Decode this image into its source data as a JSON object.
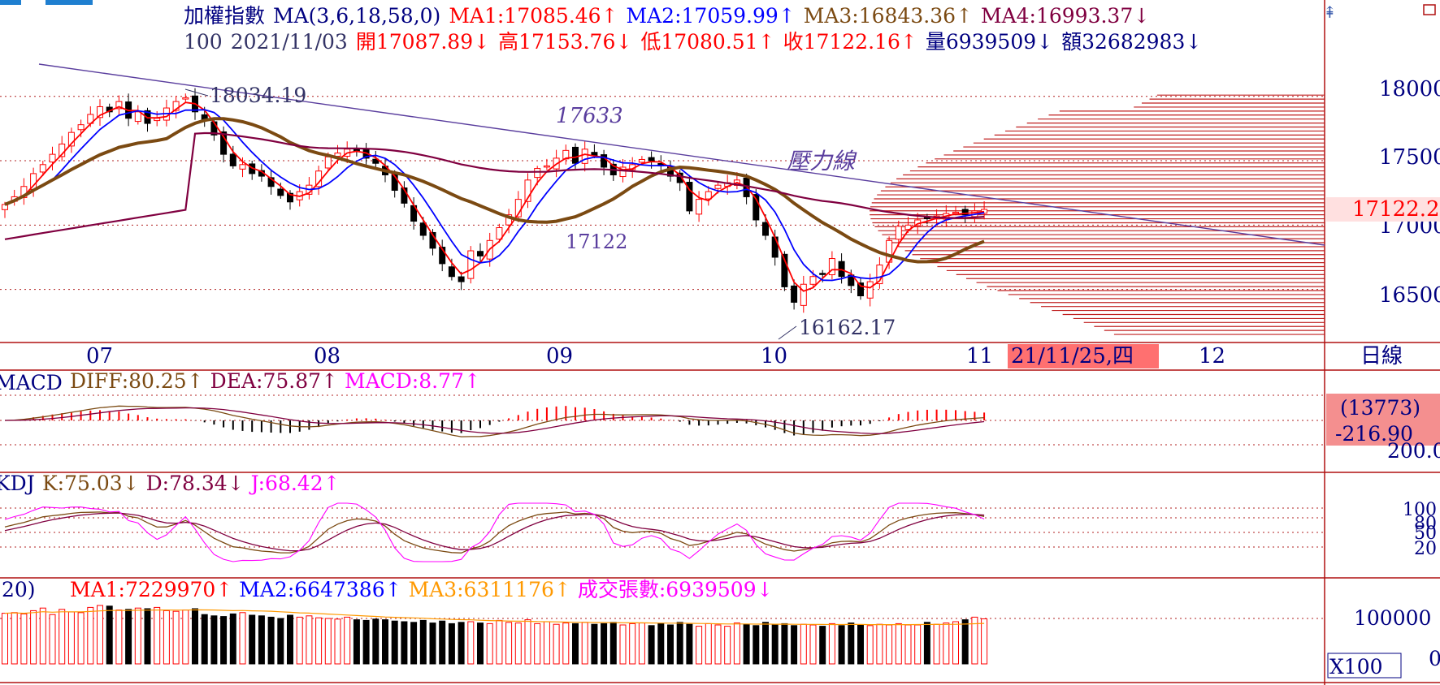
{
  "colors": {
    "up": "#ff0000",
    "down": "#000000",
    "ma1": "#ff0000",
    "ma2": "#0000ff",
    "ma3": "#7b4a12",
    "ma4": "#800040",
    "trend": "#5a3e9e",
    "grid": "#b02020",
    "frame": "#b01010",
    "date_box": "#ff7070",
    "info_box": "#f48f8f",
    "dark": "#333366",
    "magenta": "#ff00ff",
    "orange": "#ff9900"
  },
  "header": {
    "line1": [
      {
        "text": "加權指數",
        "color": "#000080"
      },
      {
        "text": "MA(3,6,18,58,0)",
        "color": "#000080"
      },
      {
        "text": "MA1:17085.46↑",
        "color": "#ff0000"
      },
      {
        "text": "MA2:17059.99↑",
        "color": "#0000ff"
      },
      {
        "text": "MA3:16843.36↑",
        "color": "#7b4a12"
      },
      {
        "text": "MA4:16993.37↓",
        "color": "#800040"
      }
    ],
    "line2": [
      {
        "text": "100",
        "color": "#333366"
      },
      {
        "text": "2021/11/03",
        "color": "#333366"
      },
      {
        "text": "開17087.89↓",
        "color": "#ff0000"
      },
      {
        "text": "高17153.76↓",
        "color": "#ff0000"
      },
      {
        "text": "低17080.51↑",
        "color": "#ff0000"
      },
      {
        "text": "收17122.16↑",
        "color": "#ff0000"
      },
      {
        "text": "量6939509↓",
        "color": "#000080"
      },
      {
        "text": "額32682983↓",
        "color": "#000080"
      }
    ]
  },
  "annotations": {
    "high_label": "18034.19",
    "low_label": "16162.17",
    "trendline_value": "17633",
    "mid_value": "17122",
    "resistance_label": "壓力線"
  },
  "price_axis": {
    "ticks": [
      "18000",
      "17500",
      "17000",
      "16500"
    ],
    "current_label": "17122.2"
  },
  "x_axis": {
    "months": [
      "07",
      "08",
      "09",
      "10",
      "11",
      "12"
    ],
    "date_box": "21/11/25,四",
    "period": "日線"
  },
  "macd_panel": {
    "name": "MACD",
    "values": [
      {
        "text": "DIFF:80.25↑",
        "color": "#7b4a12"
      },
      {
        "text": "DEA:75.87↑",
        "color": "#800040"
      },
      {
        "text": "MACD:8.77↑",
        "color": "#ff00ff"
      }
    ],
    "box_line1": "(13773)",
    "box_line2": "-216.90",
    "axis_peek": "200.0"
  },
  "kdj_panel": {
    "name": "KDJ",
    "values": [
      {
        "text": "K:75.03↓",
        "color": "#7b4a12"
      },
      {
        "text": "D:78.34↓",
        "color": "#800040"
      },
      {
        "text": "J:68.42↑",
        "color": "#ff00ff"
      }
    ],
    "axis_ticks": [
      "100",
      "80",
      "50",
      "20"
    ]
  },
  "volume_panel": {
    "prefix": ",20)",
    "values": [
      {
        "text": "MA1:7229970↑",
        "color": "#ff0000"
      },
      {
        "text": "MA2:6647386↑",
        "color": "#0000ff"
      },
      {
        "text": "MA3:6311176↑",
        "color": "#ff9900"
      },
      {
        "text": "成交張數:6939509↓",
        "color": "#ff00ff"
      }
    ],
    "axis_tick": "100000",
    "axis_zero": "0",
    "multiplier": "X100"
  },
  "chart_data": {
    "type": "candlestick",
    "title": "加權指數",
    "period": "daily",
    "ylim": [
      16100,
      18150
    ],
    "x_labels": [
      "07",
      "08",
      "09",
      "10",
      "11",
      "12"
    ],
    "last_bar": {
      "date": "2021/11/03",
      "open": 17087.89,
      "high": 17153.76,
      "low": 17080.51,
      "close": 17122.16,
      "volume": 6939509,
      "amount": 32682983
    },
    "period_high": 18034.19,
    "period_low": 16162.17,
    "moving_averages": {
      "MA1": 17085.46,
      "MA2": 17059.99,
      "MA3": 16843.36,
      "MA4": 16993.37
    },
    "closes": [
      17160,
      17220,
      17300,
      17400,
      17470,
      17550,
      17630,
      17720,
      17780,
      17860,
      17920,
      17880,
      17960,
      17830,
      17880,
      17790,
      17830,
      17910,
      17960,
      17990,
      17880,
      17810,
      17700,
      17550,
      17460,
      17470,
      17400,
      17380,
      17300,
      17230,
      17180,
      17260,
      17310,
      17420,
      17530,
      17560,
      17590,
      17570,
      17520,
      17480,
      17390,
      17270,
      17170,
      17030,
      16920,
      16820,
      16700,
      16600,
      16560,
      16800,
      16760,
      16880,
      16980,
      17080,
      17200,
      17350,
      17440,
      17460,
      17520,
      17580,
      17480,
      17590,
      17540,
      17450,
      17390,
      17450,
      17470,
      17510,
      17500,
      17460,
      17380,
      17330,
      17110,
      17200,
      17260,
      17310,
      17330,
      17350,
      17220,
      17040,
      16920,
      16750,
      16520,
      16400,
      16540,
      16600,
      16620,
      16740,
      16600,
      16530,
      16450,
      16560,
      16690,
      16880,
      16990,
      17000,
      17040,
      17050,
      17070,
      17090,
      17100,
      17080,
      17110,
      17122
    ],
    "volumes": [
      7800000,
      7900000,
      7700000,
      8200000,
      8600000,
      7600000,
      8400000,
      8000000,
      7900000,
      8700000,
      9000000,
      8900000,
      8300000,
      8400000,
      8600000,
      8500000,
      8700000,
      8200000,
      8100000,
      8300000,
      8500000,
      7600000,
      7400000,
      7300000,
      7700000,
      7900000,
      7500000,
      7400000,
      7200000,
      7000000,
      7500000,
      7200000,
      7400000,
      7100000,
      7000000,
      6900000,
      7200000,
      6800000,
      6700000,
      6900000,
      6800000,
      6600000,
      6500000,
      6400000,
      6700000,
      6300000,
      6600000,
      6200000,
      6400000,
      6500000,
      6300000,
      6200000,
      6700000,
      6400000,
      6300000,
      6800000,
      6200000,
      6500000,
      6100000,
      6300000,
      6200000,
      6400000,
      6100000,
      6200000,
      6400000,
      6000000,
      6200000,
      6300000,
      5900000,
      6200000,
      6000000,
      6400000,
      6100000,
      5800000,
      6200000,
      6000000,
      5800000,
      6300000,
      6100000,
      5900000,
      6400000,
      6000000,
      6200000,
      5900000,
      6100000,
      6000000,
      5800000,
      6200000,
      5900000,
      6300000,
      6000000,
      5900000,
      6100000,
      6000000,
      6200000,
      6000000,
      6000000,
      6400000,
      6100000,
      6300000,
      6500000,
      6800000,
      7200000,
      6939509
    ]
  }
}
